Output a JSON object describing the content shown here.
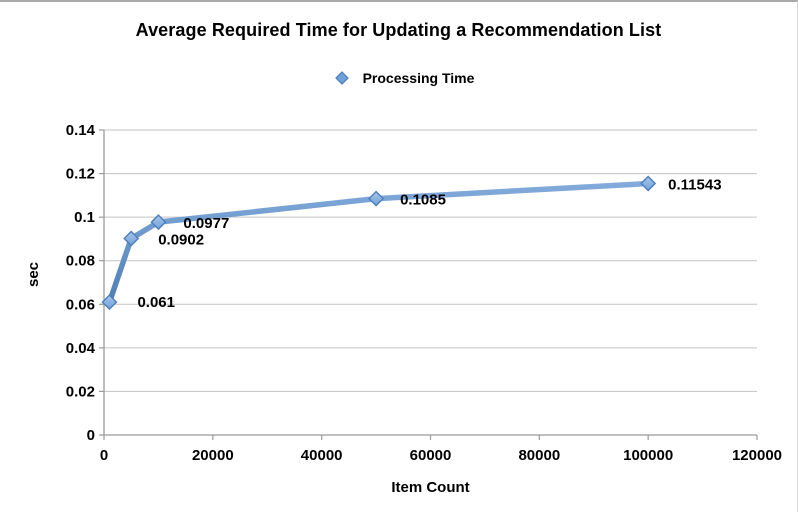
{
  "chart_data": {
    "type": "line",
    "title": "Average Required Time for Updating a Recommendation List",
    "xlabel": "Item Count",
    "ylabel": "sec",
    "legend": "Processing Time",
    "legend_position": "top-center",
    "grid": "horizontal",
    "xlim": [
      0,
      120000
    ],
    "ylim": [
      0,
      0.14
    ],
    "xticks": [
      {
        "v": 0,
        "label": "0"
      },
      {
        "v": 20000,
        "label": "20000"
      },
      {
        "v": 40000,
        "label": "40000"
      },
      {
        "v": 60000,
        "label": "60000"
      },
      {
        "v": 80000,
        "label": "80000"
      },
      {
        "v": 100000,
        "label": "100000"
      },
      {
        "v": 120000,
        "label": "120000"
      }
    ],
    "yticks": [
      {
        "v": 0,
        "label": "0"
      },
      {
        "v": 0.02,
        "label": "0.02"
      },
      {
        "v": 0.04,
        "label": "0.04"
      },
      {
        "v": 0.06,
        "label": "0.06"
      },
      {
        "v": 0.08,
        "label": "0.08"
      },
      {
        "v": 0.1,
        "label": "0.1"
      },
      {
        "v": 0.12,
        "label": "0.12"
      },
      {
        "v": 0.14,
        "label": "0.14"
      }
    ],
    "series": [
      {
        "name": "Processing Time",
        "marker": "diamond",
        "points": [
          {
            "x": 1000,
            "y": 0.061,
            "label": "0.061"
          },
          {
            "x": 5000,
            "y": 0.0902,
            "label": "0.0902"
          },
          {
            "x": 10000,
            "y": 0.0977,
            "label": "0.0977"
          },
          {
            "x": 50000,
            "y": 0.1085,
            "label": "0.1085"
          },
          {
            "x": 100000,
            "y": 0.11543,
            "label": "0.11543"
          }
        ]
      }
    ],
    "colors": {
      "line_gradient_top": "#82ABDB",
      "line_gradient_bottom": "#4E7FB5",
      "marker_gradient_top": "#A9C7E9",
      "marker_gradient_bottom": "#6FA0D8",
      "marker_stroke": "#4D7EBC",
      "grid": "#C3C3C3",
      "axis": "#9B9B9B",
      "text": "#000000"
    }
  }
}
